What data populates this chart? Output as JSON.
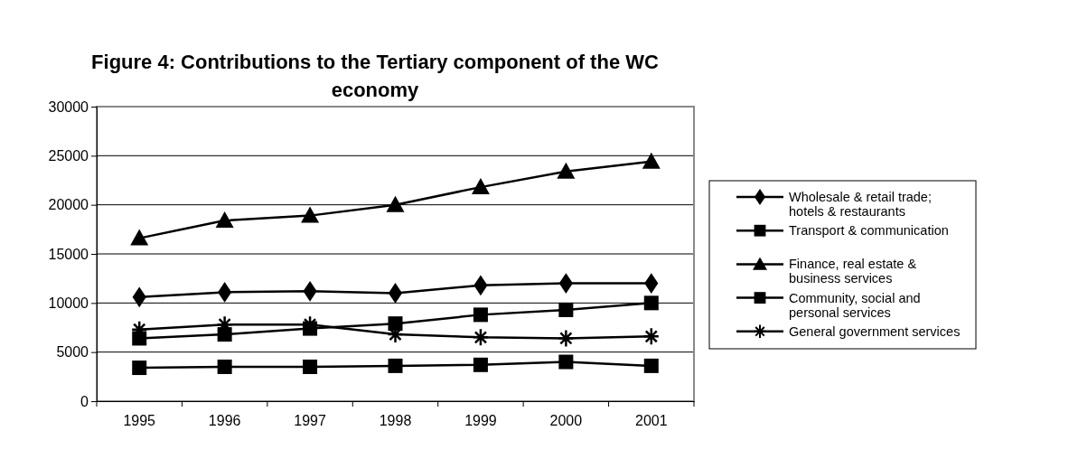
{
  "chart_data": {
    "type": "line",
    "title": "Figure 4: Contributions to the Tertiary component of the WC economy",
    "categories": [
      "1995",
      "1996",
      "1997",
      "1998",
      "1999",
      "2000",
      "2001"
    ],
    "series": [
      {
        "name": "Wholesale & retail trade; hotels & restaurants",
        "color": "#000000",
        "marker": "diamond",
        "values": [
          10600,
          11100,
          11200,
          11000,
          11800,
          12000,
          12000
        ]
      },
      {
        "name": "Transport & communication",
        "color": "#000000",
        "marker": "square",
        "values": [
          6400,
          6800,
          7400,
          7900,
          8800,
          9300,
          10000
        ]
      },
      {
        "name": "Finance, real estate & business services",
        "color": "#000000",
        "marker": "triangle",
        "values": [
          16600,
          18400,
          18900,
          20000,
          21800,
          23400,
          24400
        ]
      },
      {
        "name": "Community, social and personal services",
        "color": "#000000",
        "marker": "square",
        "values": [
          3400,
          3500,
          3500,
          3600,
          3700,
          4000,
          3600
        ]
      },
      {
        "name": "General government services",
        "color": "#000000",
        "marker": "cross",
        "values": [
          7300,
          7800,
          7800,
          6800,
          6500,
          6400,
          6600
        ]
      }
    ],
    "ylim": [
      0,
      30000
    ],
    "yticks": [
      0,
      5000,
      10000,
      15000,
      20000,
      25000,
      30000
    ],
    "grid": "y",
    "legend": "right",
    "line_style": "solid"
  }
}
